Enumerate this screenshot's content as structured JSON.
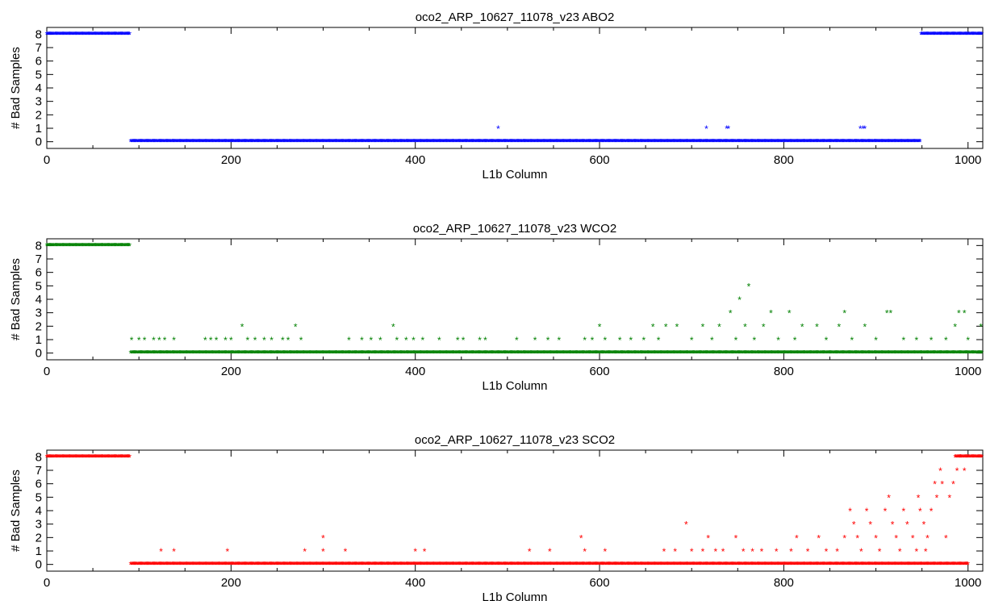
{
  "chart_data": [
    {
      "type": "scatter",
      "title": "oco2_ARP_10627_11078_v23 ABO2",
      "xlabel": "L1b Column",
      "ylabel": "# Bad Samples",
      "xlim": [
        0,
        1016
      ],
      "ylim": [
        -0.5,
        8.5
      ],
      "xticks": [
        0,
        200,
        400,
        600,
        800,
        1000
      ],
      "yticks": [
        0,
        1,
        2,
        3,
        4,
        5,
        6,
        7,
        8
      ],
      "color": "#0000ff",
      "marker": "*",
      "grid": false,
      "segments": [
        {
          "x_start": 0,
          "x_end": 90,
          "y": 8
        },
        {
          "x_start": 91,
          "x_end": 948,
          "y": 0
        },
        {
          "x_start": 949,
          "x_end": 1016,
          "y": 8
        }
      ],
      "points": [
        {
          "x": 490,
          "y": 1
        },
        {
          "x": 716,
          "y": 1
        },
        {
          "x": 738,
          "y": 1
        },
        {
          "x": 740,
          "y": 1
        },
        {
          "x": 883,
          "y": 1
        },
        {
          "x": 886,
          "y": 1
        },
        {
          "x": 888,
          "y": 1
        }
      ]
    },
    {
      "type": "scatter",
      "title": "oco2_ARP_10627_11078_v23 WCO2",
      "xlabel": "L1b Column",
      "ylabel": "# Bad Samples",
      "xlim": [
        0,
        1016
      ],
      "ylim": [
        -0.5,
        8.5
      ],
      "xticks": [
        0,
        200,
        400,
        600,
        800,
        1000
      ],
      "yticks": [
        0,
        1,
        2,
        3,
        4,
        5,
        6,
        7,
        8
      ],
      "color": "#008000",
      "marker": "*",
      "grid": false,
      "segments": [
        {
          "x_start": 0,
          "x_end": 90,
          "y": 8
        },
        {
          "x_start": 91,
          "x_end": 1016,
          "y": 0
        }
      ],
      "points": [
        {
          "x": 92,
          "y": 1
        },
        {
          "x": 100,
          "y": 1
        },
        {
          "x": 106,
          "y": 1
        },
        {
          "x": 116,
          "y": 1
        },
        {
          "x": 122,
          "y": 1
        },
        {
          "x": 128,
          "y": 1
        },
        {
          "x": 138,
          "y": 1
        },
        {
          "x": 172,
          "y": 1
        },
        {
          "x": 178,
          "y": 1
        },
        {
          "x": 184,
          "y": 1
        },
        {
          "x": 194,
          "y": 1
        },
        {
          "x": 200,
          "y": 1
        },
        {
          "x": 212,
          "y": 2
        },
        {
          "x": 218,
          "y": 1
        },
        {
          "x": 226,
          "y": 1
        },
        {
          "x": 236,
          "y": 1
        },
        {
          "x": 244,
          "y": 1
        },
        {
          "x": 256,
          "y": 1
        },
        {
          "x": 262,
          "y": 1
        },
        {
          "x": 270,
          "y": 2
        },
        {
          "x": 276,
          "y": 1
        },
        {
          "x": 328,
          "y": 1
        },
        {
          "x": 342,
          "y": 1
        },
        {
          "x": 352,
          "y": 1
        },
        {
          "x": 362,
          "y": 1
        },
        {
          "x": 376,
          "y": 2
        },
        {
          "x": 380,
          "y": 1
        },
        {
          "x": 390,
          "y": 1
        },
        {
          "x": 398,
          "y": 1
        },
        {
          "x": 408,
          "y": 1
        },
        {
          "x": 426,
          "y": 1
        },
        {
          "x": 446,
          "y": 1
        },
        {
          "x": 452,
          "y": 1
        },
        {
          "x": 470,
          "y": 1
        },
        {
          "x": 476,
          "y": 1
        },
        {
          "x": 510,
          "y": 1
        },
        {
          "x": 530,
          "y": 1
        },
        {
          "x": 544,
          "y": 1
        },
        {
          "x": 556,
          "y": 1
        },
        {
          "x": 584,
          "y": 1
        },
        {
          "x": 592,
          "y": 1
        },
        {
          "x": 600,
          "y": 2
        },
        {
          "x": 606,
          "y": 1
        },
        {
          "x": 622,
          "y": 1
        },
        {
          "x": 634,
          "y": 1
        },
        {
          "x": 648,
          "y": 1
        },
        {
          "x": 658,
          "y": 2
        },
        {
          "x": 664,
          "y": 1
        },
        {
          "x": 672,
          "y": 2
        },
        {
          "x": 684,
          "y": 2
        },
        {
          "x": 700,
          "y": 1
        },
        {
          "x": 712,
          "y": 2
        },
        {
          "x": 722,
          "y": 1
        },
        {
          "x": 730,
          "y": 2
        },
        {
          "x": 742,
          "y": 3
        },
        {
          "x": 748,
          "y": 1
        },
        {
          "x": 752,
          "y": 4
        },
        {
          "x": 758,
          "y": 2
        },
        {
          "x": 762,
          "y": 5
        },
        {
          "x": 768,
          "y": 1
        },
        {
          "x": 778,
          "y": 2
        },
        {
          "x": 786,
          "y": 3
        },
        {
          "x": 794,
          "y": 1
        },
        {
          "x": 806,
          "y": 3
        },
        {
          "x": 812,
          "y": 1
        },
        {
          "x": 820,
          "y": 2
        },
        {
          "x": 836,
          "y": 2
        },
        {
          "x": 846,
          "y": 1
        },
        {
          "x": 860,
          "y": 2
        },
        {
          "x": 866,
          "y": 3
        },
        {
          "x": 874,
          "y": 1
        },
        {
          "x": 888,
          "y": 2
        },
        {
          "x": 900,
          "y": 1
        },
        {
          "x": 912,
          "y": 3
        },
        {
          "x": 916,
          "y": 3
        },
        {
          "x": 930,
          "y": 1
        },
        {
          "x": 944,
          "y": 1
        },
        {
          "x": 960,
          "y": 1
        },
        {
          "x": 976,
          "y": 1
        },
        {
          "x": 986,
          "y": 2
        },
        {
          "x": 990,
          "y": 3
        },
        {
          "x": 996,
          "y": 3
        },
        {
          "x": 1000,
          "y": 1
        },
        {
          "x": 1014,
          "y": 2
        }
      ]
    },
    {
      "type": "scatter",
      "title": "oco2_ARP_10627_11078_v23 SCO2",
      "xlabel": "L1b Column",
      "ylabel": "# Bad Samples",
      "xlim": [
        0,
        1016
      ],
      "ylim": [
        -0.5,
        8.5
      ],
      "xticks": [
        0,
        200,
        400,
        600,
        800,
        1000
      ],
      "yticks": [
        0,
        1,
        2,
        3,
        4,
        5,
        6,
        7,
        8
      ],
      "color": "#ff0000",
      "marker": "*",
      "grid": false,
      "segments": [
        {
          "x_start": 0,
          "x_end": 90,
          "y": 8
        },
        {
          "x_start": 91,
          "x_end": 1000,
          "y": 0
        },
        {
          "x_start": 986,
          "x_end": 1016,
          "y": 8
        }
      ],
      "points": [
        {
          "x": 124,
          "y": 1
        },
        {
          "x": 138,
          "y": 1
        },
        {
          "x": 196,
          "y": 1
        },
        {
          "x": 280,
          "y": 1
        },
        {
          "x": 300,
          "y": 2
        },
        {
          "x": 300,
          "y": 1
        },
        {
          "x": 324,
          "y": 1
        },
        {
          "x": 400,
          "y": 1
        },
        {
          "x": 410,
          "y": 1
        },
        {
          "x": 524,
          "y": 1
        },
        {
          "x": 546,
          "y": 1
        },
        {
          "x": 580,
          "y": 2
        },
        {
          "x": 584,
          "y": 1
        },
        {
          "x": 606,
          "y": 1
        },
        {
          "x": 670,
          "y": 1
        },
        {
          "x": 682,
          "y": 1
        },
        {
          "x": 694,
          "y": 3
        },
        {
          "x": 700,
          "y": 1
        },
        {
          "x": 712,
          "y": 1
        },
        {
          "x": 718,
          "y": 2
        },
        {
          "x": 726,
          "y": 1
        },
        {
          "x": 734,
          "y": 1
        },
        {
          "x": 748,
          "y": 2
        },
        {
          "x": 756,
          "y": 1
        },
        {
          "x": 766,
          "y": 1
        },
        {
          "x": 776,
          "y": 1
        },
        {
          "x": 792,
          "y": 1
        },
        {
          "x": 808,
          "y": 1
        },
        {
          "x": 814,
          "y": 2
        },
        {
          "x": 826,
          "y": 1
        },
        {
          "x": 838,
          "y": 2
        },
        {
          "x": 846,
          "y": 1
        },
        {
          "x": 858,
          "y": 1
        },
        {
          "x": 866,
          "y": 2
        },
        {
          "x": 872,
          "y": 4
        },
        {
          "x": 876,
          "y": 3
        },
        {
          "x": 880,
          "y": 2
        },
        {
          "x": 884,
          "y": 1
        },
        {
          "x": 890,
          "y": 4
        },
        {
          "x": 894,
          "y": 3
        },
        {
          "x": 900,
          "y": 2
        },
        {
          "x": 904,
          "y": 1
        },
        {
          "x": 910,
          "y": 4
        },
        {
          "x": 914,
          "y": 5
        },
        {
          "x": 918,
          "y": 3
        },
        {
          "x": 922,
          "y": 2
        },
        {
          "x": 926,
          "y": 1
        },
        {
          "x": 930,
          "y": 4
        },
        {
          "x": 934,
          "y": 3
        },
        {
          "x": 940,
          "y": 2
        },
        {
          "x": 946,
          "y": 5
        },
        {
          "x": 948,
          "y": 4
        },
        {
          "x": 952,
          "y": 3
        },
        {
          "x": 956,
          "y": 2
        },
        {
          "x": 960,
          "y": 4
        },
        {
          "x": 964,
          "y": 6
        },
        {
          "x": 966,
          "y": 5
        },
        {
          "x": 970,
          "y": 7
        },
        {
          "x": 972,
          "y": 6
        },
        {
          "x": 976,
          "y": 2
        },
        {
          "x": 980,
          "y": 5
        },
        {
          "x": 984,
          "y": 6
        },
        {
          "x": 988,
          "y": 7
        },
        {
          "x": 992,
          "y": 8
        },
        {
          "x": 996,
          "y": 7
        },
        {
          "x": 954,
          "y": 1
        },
        {
          "x": 944,
          "y": 1
        },
        {
          "x": 936,
          "y": 0
        }
      ]
    }
  ]
}
